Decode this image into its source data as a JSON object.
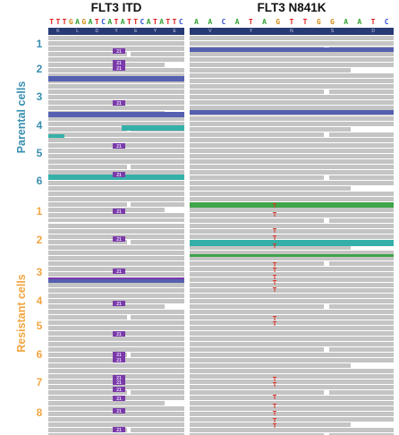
{
  "titles": {
    "left": "FLT3 ITD",
    "right": "FLT3 N841K"
  },
  "left_panel": {
    "sequence": [
      "T",
      "T",
      "T",
      "G",
      "A",
      "G",
      "A",
      "T",
      "C",
      "A",
      "T",
      "A",
      "T",
      "T",
      "C",
      "A",
      "T",
      "A",
      "T",
      "T",
      "C"
    ],
    "amino_acids": [
      "K",
      "L",
      "D",
      "Y",
      "E",
      "Y",
      "E"
    ],
    "insertion_label": "21"
  },
  "right_panel": {
    "sequence": [
      "A",
      "A",
      "C",
      "A",
      "T",
      "A",
      "G",
      "T",
      "T",
      "G",
      "G",
      "A",
      "A",
      "T",
      "C"
    ],
    "amino_acids": [
      "V",
      "Y",
      "N",
      "S",
      "D"
    ],
    "mismatch_base": "T"
  },
  "groups": {
    "parental": {
      "label": "Parental cells",
      "numbers": [
        "1",
        "2",
        "3",
        "4",
        "5",
        "6"
      ]
    },
    "resistant": {
      "label": "Resistant cells",
      "numbers": [
        "1",
        "2",
        "3",
        "4",
        "5",
        "6",
        "7",
        "8"
      ]
    }
  },
  "colors": {
    "parental_label": "#3a8fb0",
    "resistant_label": "#f2a540",
    "read_gray": "#c4c4c4",
    "read_blue": "#5660b0",
    "read_teal": "#35b0a8",
    "read_green": "#3fa44a",
    "insertion_purple": "#7a3aa8",
    "mismatch_red": "#e03020",
    "base_A": "#2fa12f",
    "base_C": "#3050d8",
    "base_G": "#d08a10",
    "base_T": "#e02020"
  }
}
